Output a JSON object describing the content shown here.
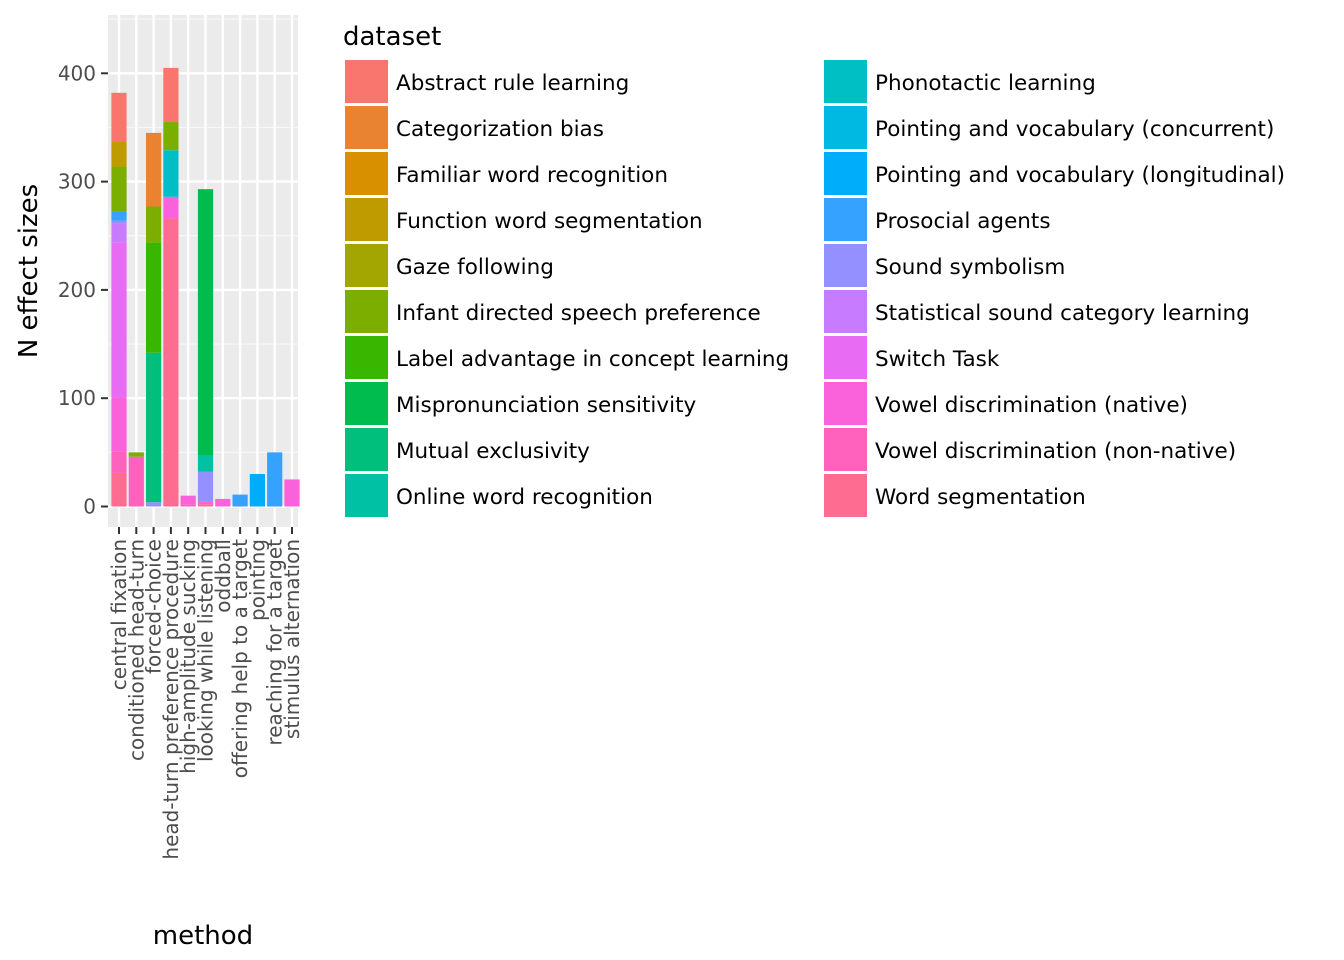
{
  "chart_data": {
    "type": "bar",
    "stacked": true,
    "title": "",
    "xlabel": "method",
    "ylabel": "N effect sizes",
    "ylim": [
      0,
      453
    ],
    "yticks": [
      0,
      100,
      200,
      300,
      400
    ],
    "grid": true,
    "legend": {
      "title": "dataset",
      "position": "right",
      "columns": 2
    },
    "categories": [
      "central fixation",
      "conditioned head-turn",
      "forced-choice",
      "head-turn preference procedure",
      "high-amplitude sucking",
      "looking while listening",
      "oddball",
      "offering help to a target",
      "pointing",
      "reaching for a target",
      "stimulus alternation"
    ],
    "series": [
      {
        "name": "Abstract rule learning",
        "color": "#F8766D",
        "values": [
          45,
          0,
          0,
          50,
          0,
          0,
          0,
          0,
          0,
          0,
          0
        ]
      },
      {
        "name": "Categorization bias",
        "color": "#EA8331",
        "values": [
          0,
          0,
          68,
          0,
          0,
          0,
          0,
          0,
          0,
          0,
          0
        ]
      },
      {
        "name": "Familiar word recognition",
        "color": "#D89000",
        "values": [
          0,
          0,
          0,
          0,
          0,
          0,
          0,
          0,
          0,
          0,
          0
        ]
      },
      {
        "name": "Function word segmentation",
        "color": "#C09B00",
        "values": [
          23,
          0,
          0,
          0,
          0,
          0,
          0,
          0,
          0,
          0,
          0
        ]
      },
      {
        "name": "Gaze following",
        "color": "#A3A500",
        "values": [
          0,
          0,
          0,
          0,
          0,
          0,
          0,
          0,
          0,
          0,
          0
        ]
      },
      {
        "name": "Infant directed speech preference",
        "color": "#7CAE00",
        "values": [
          42,
          4,
          33,
          26,
          0,
          0,
          0,
          0,
          0,
          0,
          0
        ]
      },
      {
        "name": "Label advantage in concept learning",
        "color": "#39B600",
        "values": [
          0,
          0,
          102,
          0,
          0,
          0,
          0,
          0,
          0,
          0,
          0
        ]
      },
      {
        "name": "Mispronunciation sensitivity",
        "color": "#00BB4E",
        "values": [
          0,
          0,
          0,
          0,
          0,
          246,
          0,
          0,
          0,
          0,
          0
        ]
      },
      {
        "name": "Mutual exclusivity",
        "color": "#00BF7D",
        "values": [
          0,
          0,
          138,
          0,
          0,
          0,
          0,
          0,
          0,
          0,
          0
        ]
      },
      {
        "name": "Online word recognition",
        "color": "#00C1A3",
        "values": [
          0,
          0,
          0,
          0,
          0,
          15,
          0,
          0,
          0,
          0,
          0
        ]
      },
      {
        "name": "Phonotactic learning",
        "color": "#00BFC4",
        "values": [
          0,
          0,
          0,
          43,
          0,
          0,
          0,
          0,
          0,
          0,
          0
        ]
      },
      {
        "name": "Pointing and vocabulary (concurrent)",
        "color": "#00B9E3",
        "values": [
          0,
          0,
          0,
          0,
          0,
          0,
          0,
          0,
          0,
          0,
          0
        ]
      },
      {
        "name": "Pointing and vocabulary (longitudinal)",
        "color": "#00ADFA",
        "values": [
          0,
          0,
          0,
          0,
          0,
          0,
          0,
          0,
          30,
          0,
          0
        ]
      },
      {
        "name": "Prosocial agents",
        "color": "#35A2FF",
        "values": [
          8,
          0,
          0,
          0,
          0,
          0,
          0,
          11,
          0,
          50,
          0
        ]
      },
      {
        "name": "Sound symbolism",
        "color": "#9590FF",
        "values": [
          3,
          0,
          4,
          0,
          0,
          27,
          0,
          0,
          0,
          0,
          0
        ]
      },
      {
        "name": "Statistical sound category learning",
        "color": "#C77CFF",
        "values": [
          17,
          0,
          0,
          0,
          0,
          0,
          0,
          0,
          0,
          0,
          0
        ]
      },
      {
        "name": "Switch Task",
        "color": "#E76BF3",
        "values": [
          143,
          0,
          0,
          0,
          0,
          0,
          0,
          0,
          0,
          0,
          0
        ]
      },
      {
        "name": "Vowel discrimination (native)",
        "color": "#FA62DB",
        "values": [
          50,
          0,
          0,
          20,
          8,
          3,
          7,
          0,
          0,
          0,
          25
        ]
      },
      {
        "name": "Vowel discrimination (non-native)",
        "color": "#FF62BC",
        "values": [
          20,
          46,
          0,
          0,
          2,
          0,
          0,
          0,
          0,
          0,
          0
        ]
      },
      {
        "name": "Word segmentation",
        "color": "#FF6C91",
        "values": [
          31,
          0,
          0,
          266,
          0,
          2,
          0,
          0,
          0,
          0,
          0
        ]
      }
    ]
  }
}
